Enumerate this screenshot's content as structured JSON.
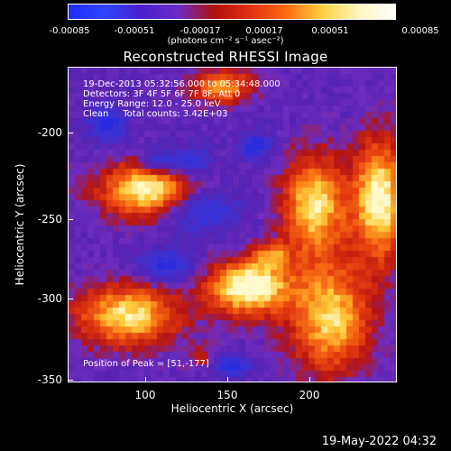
{
  "colorbar": {
    "ticks": [
      "-0.00085",
      "-0.00051",
      "-0.00017",
      "0.00017",
      "0.00051",
      "0.00085"
    ],
    "units_label": "(photons cm⁻² s⁻¹ asec⁻²)",
    "colors": [
      "#1e2cff",
      "#2e45ff",
      "#4a1ecc",
      "#6a2bc8",
      "#b01010",
      "#e03010",
      "#ff6a10",
      "#ffd040",
      "#fff6c0",
      "#ffffff"
    ]
  },
  "title": "Reconstructed RHESSI Image",
  "info": {
    "time_range": "19-Dec-2013 05:32:56.000 to 05:34:48.000",
    "detectors": "Detectors: 3F 4F 5F 6F 7F 8F, Att 0",
    "energy": "Energy Range: 12.0 - 25.0 keV",
    "method": "Clean     Total counts: 3.42E+03",
    "peak": "Position of Peak = [51,-177]"
  },
  "axes": {
    "xlabel": "Heliocentric X (arcsec)",
    "ylabel": "Heliocentric Y (arcsec)",
    "x_ticks": [
      "100",
      "150",
      "200"
    ],
    "y_ticks": [
      "-200",
      "-250",
      "-300",
      "-350"
    ],
    "xlim": [
      57,
      242
    ],
    "ylim": [
      -352,
      -172
    ]
  },
  "footer": "19-May-2022 04:32"
}
